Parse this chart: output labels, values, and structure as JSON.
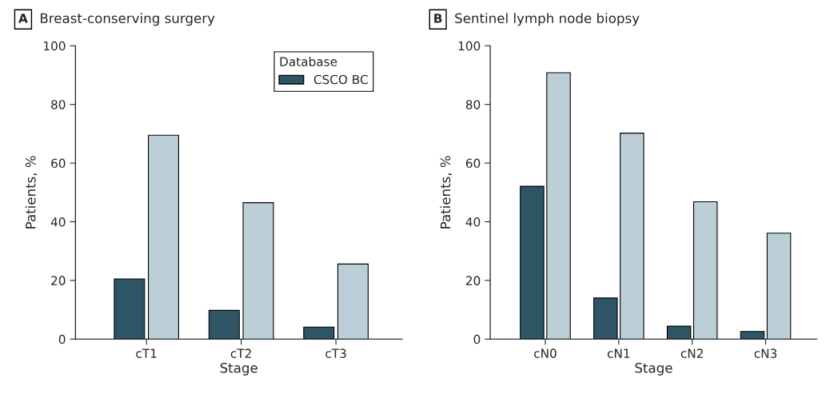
{
  "chart_data": [
    {
      "type": "bar",
      "title": "Breast-conserving surgery",
      "annotations": [
        "A"
      ],
      "xlabel": "Stage",
      "ylabel": "Patients, %",
      "categories": [
        "cT1",
        "cT2",
        "cT3"
      ],
      "series": [
        {
          "name": "CSCO BC",
          "color": "#2e5566",
          "values": [
            20.5,
            9.8,
            4.1
          ]
        },
        {
          "color": "#bccfd8",
          "values": [
            69.5,
            46.5,
            25.6
          ]
        }
      ],
      "ylim": [
        0,
        100
      ],
      "yticks": [
        0,
        20,
        40,
        60,
        80,
        100
      ],
      "grid": false,
      "legend": "top right",
      "legend_title": "Database"
    },
    {
      "type": "bar",
      "title": "Sentinel lymph node biopsy",
      "annotations": [
        "B"
      ],
      "xlabel": "Stage",
      "ylabel": "Patients, %",
      "categories": [
        "cN0",
        "cN1",
        "cN2",
        "cN3"
      ],
      "series": [
        {
          "color": "#2e5566",
          "values": [
            52.1,
            14.0,
            4.4,
            2.6
          ]
        },
        {
          "color": "#bccfd8",
          "values": [
            90.8,
            70.2,
            46.8,
            36.1
          ]
        }
      ],
      "ylim": [
        0,
        100
      ],
      "yticks": [
        0,
        20,
        40,
        60,
        80,
        100
      ],
      "grid": false,
      "legend": false
    }
  ]
}
